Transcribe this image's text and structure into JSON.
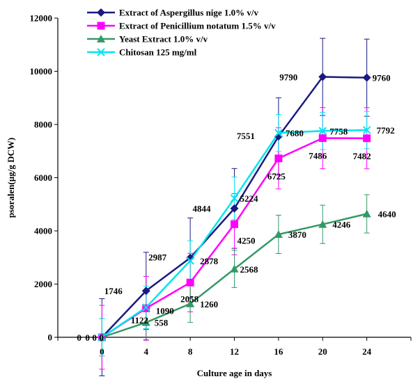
{
  "chart_data": {
    "type": "line",
    "xlabel": "Culture age in days",
    "ylabel": "psoralen(µg/g DCW)",
    "x": [
      0,
      4,
      8,
      12,
      16,
      20,
      24
    ],
    "xlim": [
      -4,
      28
    ],
    "ylim": [
      0,
      12000
    ],
    "yticks": [
      0,
      2000,
      4000,
      6000,
      8000,
      10000,
      12000
    ],
    "grid": false,
    "legend_position": "top-left",
    "series": [
      {
        "name": "Extract of Aspergillus nige 1.0% v/v",
        "color": "#1a1a80",
        "marker": "diamond",
        "values": [
          0,
          1746,
          2987,
          4844,
          7551,
          9790,
          9760
        ],
        "errors": [
          1450,
          1450,
          1500,
          1500,
          1450,
          1450,
          1450
        ],
        "labels": [
          "0",
          "1746",
          "2987",
          "4844",
          "7551",
          "9790",
          "9760"
        ]
      },
      {
        "name": "Extract of Penicillium notatum 1.5% v/v",
        "color": "#ff00ff",
        "marker": "square",
        "values": [
          0,
          1090,
          2058,
          4250,
          6725,
          7486,
          7482
        ],
        "errors": [
          1200,
          1200,
          1100,
          1150,
          1150,
          1150,
          1150
        ],
        "labels": [
          "0",
          "1090",
          "2058",
          "4250",
          "6725",
          "7486",
          "7482"
        ]
      },
      {
        "name": "Yeast Extract 1.0% v/v",
        "color": "#339966",
        "marker": "triangle",
        "values": [
          0,
          558,
          1260,
          2568,
          3870,
          4246,
          4640
        ],
        "errors": [
          700,
          650,
          700,
          700,
          720,
          720,
          720
        ],
        "labels": [
          "0",
          "558",
          "1260",
          "2568",
          "3870",
          "4246",
          "4640"
        ]
      },
      {
        "name": "Chitosan 125 mg/ml",
        "color": "#00e5ee",
        "marker": "x",
        "values": [
          0,
          1122,
          2878,
          5224,
          7680,
          7758,
          7792
        ],
        "errors": [
          700,
          800,
          750,
          800,
          700,
          700,
          700
        ],
        "labels": [
          "0",
          "1122",
          "2878",
          "5224",
          "7680",
          "7758",
          "7792"
        ]
      }
    ]
  }
}
